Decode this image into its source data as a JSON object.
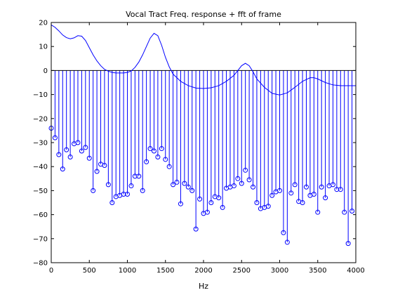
{
  "chart_data": {
    "type": "line",
    "title": "Vocal Tract Freq. response + fft of frame",
    "xlabel": "Hz",
    "ylabel": "",
    "xlim": [
      0,
      4000
    ],
    "ylim": [
      -80,
      20
    ],
    "xticks": [
      0,
      500,
      1000,
      1500,
      2000,
      2500,
      3000,
      3500,
      4000
    ],
    "yticks": [
      20,
      10,
      0,
      -10,
      -20,
      -30,
      -40,
      -50,
      -60,
      -70,
      -80
    ],
    "grid": false,
    "legend": "none",
    "line_color": "#0000ff",
    "series": [
      {
        "kind": "line",
        "x": [
          0,
          50,
          100,
          150,
          200,
          250,
          300,
          350,
          400,
          450,
          500,
          550,
          600,
          650,
          700,
          750,
          800,
          850,
          900,
          950,
          1000,
          1050,
          1100,
          1150,
          1200,
          1250,
          1300,
          1350,
          1400,
          1450,
          1500,
          1550,
          1600,
          1700,
          1800,
          1900,
          2000,
          2100,
          2200,
          2300,
          2400,
          2450,
          2500,
          2550,
          2600,
          2650,
          2700,
          2800,
          2900,
          3000,
          3100,
          3200,
          3300,
          3400,
          3450,
          3500,
          3600,
          3700,
          3800,
          3900,
          4000
        ],
        "y": [
          19,
          18,
          16.5,
          14.8,
          13.7,
          13.2,
          13.6,
          14.5,
          14.3,
          12.5,
          9.5,
          6.5,
          4,
          2,
          0.5,
          -0.3,
          -0.8,
          -1,
          -1,
          -1,
          -0.8,
          -0.2,
          1.3,
          3.5,
          6.5,
          10,
          13.5,
          15.5,
          14.5,
          10.5,
          5.5,
          1.5,
          -1.5,
          -4.5,
          -6.3,
          -7.3,
          -7.5,
          -7.2,
          -6.3,
          -4.5,
          -2,
          0,
          2,
          3,
          2,
          -0.5,
          -3.5,
          -7,
          -9.5,
          -10.2,
          -9.3,
          -7,
          -4.5,
          -3,
          -3,
          -3.5,
          -5,
          -6,
          -6.3,
          -6.3,
          -6.3
        ]
      },
      {
        "kind": "stem",
        "x": [
          0,
          50,
          100,
          150,
          200,
          250,
          300,
          350,
          400,
          450,
          500,
          550,
          600,
          650,
          700,
          750,
          800,
          850,
          900,
          950,
          1000,
          1050,
          1100,
          1150,
          1200,
          1250,
          1300,
          1350,
          1400,
          1450,
          1500,
          1550,
          1600,
          1650,
          1700,
          1750,
          1800,
          1850,
          1900,
          1950,
          2000,
          2050,
          2100,
          2150,
          2200,
          2250,
          2300,
          2350,
          2400,
          2450,
          2500,
          2550,
          2600,
          2650,
          2700,
          2750,
          2800,
          2850,
          2900,
          2950,
          3000,
          3050,
          3100,
          3150,
          3200,
          3250,
          3300,
          3350,
          3400,
          3450,
          3500,
          3550,
          3600,
          3650,
          3700,
          3750,
          3800,
          3850,
          3900,
          3950
        ],
        "y": [
          -24,
          -28,
          -35,
          -41,
          -33,
          -36,
          -30.5,
          -30,
          -33.5,
          -32,
          -36.5,
          -50,
          -42,
          -39,
          -39.5,
          -47.5,
          -55,
          -52.5,
          -52,
          -51.5,
          -51.5,
          -48,
          -44,
          -44,
          -50,
          -38,
          -32.5,
          -33.5,
          -36,
          -32.5,
          -37,
          -40,
          -47.5,
          -46.5,
          -55.5,
          -47,
          -48.5,
          -50,
          -66,
          -53.5,
          -59.5,
          -59,
          -55,
          -52.5,
          -53,
          -57,
          -49,
          -48.5,
          -48,
          -45,
          -47,
          -41.5,
          -45.5,
          -48.5,
          -55,
          -57.5,
          -57,
          -56.5,
          -52,
          -50.5,
          -50,
          -67.5,
          -71.5,
          -51,
          -47.5,
          -54.5,
          -55,
          -48.5,
          -52,
          -51.5,
          -59,
          -48.5,
          -53,
          -48,
          -47.5,
          -49.5,
          -49.5,
          -59,
          -72,
          -58.5
        ]
      }
    ]
  }
}
